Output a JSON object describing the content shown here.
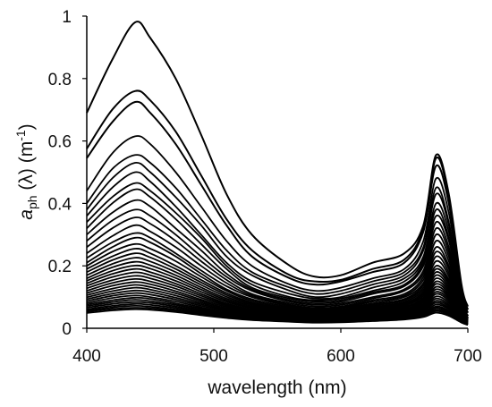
{
  "chart_data": {
    "type": "line",
    "xlabel": "wavelength (nm)",
    "ylabel": {
      "symbol": "a",
      "subscript": "ph",
      "rest": " (λ) (m",
      "superscript": "-1",
      "close": ")"
    },
    "xlim": [
      400,
      700
    ],
    "ylim": [
      0,
      1
    ],
    "xticks": [
      "400",
      "500",
      "600",
      "700"
    ],
    "yticks": [
      "0",
      "0.2",
      "0.4",
      "0.6",
      "0.8",
      "1"
    ],
    "grid": false,
    "legend": "none",
    "line_color": "#000000",
    "series": [
      {
        "values": {
          "400": 0.69,
          "420": 0.86,
          "438": 0.98,
          "450": 0.93,
          "470": 0.8,
          "490": 0.62,
          "510": 0.43,
          "530": 0.3,
          "560": 0.2,
          "580": 0.165,
          "600": 0.17,
          "625": 0.21,
          "650": 0.24,
          "665": 0.33,
          "675": 0.555,
          "685": 0.43,
          "695": 0.14,
          "700": 0.07
        }
      },
      {
        "values": {
          "400": 0.575,
          "420": 0.7,
          "438": 0.76,
          "450": 0.73,
          "470": 0.63,
          "490": 0.49,
          "510": 0.35,
          "530": 0.25,
          "560": 0.17,
          "580": 0.15,
          "600": 0.155,
          "625": 0.19,
          "650": 0.22,
          "665": 0.32,
          "675": 0.545,
          "685": 0.42,
          "695": 0.13,
          "700": 0.06
        }
      },
      {
        "values": {
          "400": 0.545,
          "420": 0.66,
          "438": 0.725,
          "450": 0.69,
          "470": 0.59,
          "490": 0.46,
          "510": 0.33,
          "530": 0.23,
          "560": 0.16,
          "580": 0.14,
          "600": 0.15,
          "625": 0.18,
          "650": 0.21,
          "665": 0.31,
          "675": 0.52,
          "685": 0.4,
          "695": 0.13,
          "700": 0.06
        }
      },
      {
        "values": {
          "400": 0.44,
          "420": 0.56,
          "438": 0.615,
          "450": 0.59,
          "470": 0.5,
          "490": 0.39,
          "510": 0.28,
          "530": 0.2,
          "560": 0.14,
          "580": 0.12,
          "600": 0.13,
          "625": 0.16,
          "650": 0.19,
          "665": 0.28,
          "675": 0.48,
          "685": 0.37,
          "695": 0.12,
          "700": 0.05
        }
      },
      {
        "values": {
          "400": 0.4,
          "420": 0.51,
          "438": 0.555,
          "450": 0.53,
          "470": 0.45,
          "490": 0.35,
          "510": 0.25,
          "530": 0.18,
          "560": 0.13,
          "580": 0.11,
          "600": 0.12,
          "625": 0.15,
          "650": 0.18,
          "665": 0.26,
          "675": 0.45,
          "685": 0.34,
          "695": 0.11,
          "700": 0.05
        }
      },
      {
        "values": {
          "400": 0.38,
          "420": 0.48,
          "438": 0.53,
          "450": 0.5,
          "470": 0.42,
          "490": 0.33,
          "510": 0.23,
          "530": 0.17,
          "560": 0.12,
          "580": 0.1,
          "600": 0.11,
          "625": 0.14,
          "650": 0.17,
          "665": 0.25,
          "675": 0.43,
          "685": 0.33,
          "695": 0.1,
          "700": 0.05
        }
      },
      {
        "values": {
          "400": 0.36,
          "420": 0.45,
          "438": 0.5,
          "450": 0.47,
          "470": 0.39,
          "490": 0.3,
          "510": 0.21,
          "530": 0.15,
          "560": 0.11,
          "580": 0.095,
          "600": 0.1,
          "625": 0.13,
          "650": 0.16,
          "665": 0.23,
          "675": 0.4,
          "685": 0.31,
          "695": 0.1,
          "700": 0.05
        }
      },
      {
        "values": {
          "400": 0.34,
          "420": 0.42,
          "438": 0.465,
          "450": 0.44,
          "470": 0.37,
          "490": 0.29,
          "510": 0.2,
          "530": 0.14,
          "560": 0.1,
          "580": 0.09,
          "600": 0.095,
          "625": 0.12,
          "650": 0.15,
          "665": 0.22,
          "675": 0.38,
          "685": 0.29,
          "695": 0.09,
          "700": 0.04
        }
      },
      {
        "values": {
          "400": 0.32,
          "420": 0.4,
          "438": 0.445,
          "450": 0.42,
          "470": 0.35,
          "490": 0.27,
          "510": 0.19,
          "530": 0.13,
          "560": 0.095,
          "580": 0.085,
          "600": 0.09,
          "625": 0.115,
          "650": 0.14,
          "665": 0.21,
          "675": 0.36,
          "685": 0.28,
          "695": 0.09,
          "700": 0.04
        }
      },
      {
        "values": {
          "400": 0.3,
          "420": 0.37,
          "438": 0.41,
          "450": 0.39,
          "470": 0.32,
          "490": 0.25,
          "510": 0.175,
          "530": 0.125,
          "560": 0.09,
          "580": 0.08,
          "600": 0.085,
          "625": 0.11,
          "650": 0.135,
          "665": 0.2,
          "675": 0.34,
          "685": 0.26,
          "695": 0.085,
          "700": 0.04
        }
      },
      {
        "values": {
          "400": 0.28,
          "420": 0.345,
          "438": 0.38,
          "450": 0.36,
          "470": 0.3,
          "490": 0.23,
          "510": 0.165,
          "530": 0.12,
          "560": 0.085,
          "580": 0.075,
          "600": 0.08,
          "625": 0.1,
          "650": 0.125,
          "665": 0.185,
          "675": 0.32,
          "685": 0.245,
          "695": 0.08,
          "700": 0.04
        }
      },
      {
        "values": {
          "400": 0.26,
          "420": 0.32,
          "438": 0.355,
          "450": 0.335,
          "470": 0.28,
          "490": 0.215,
          "510": 0.155,
          "530": 0.11,
          "560": 0.08,
          "580": 0.07,
          "600": 0.075,
          "625": 0.095,
          "650": 0.12,
          "665": 0.175,
          "675": 0.3,
          "685": 0.23,
          "695": 0.075,
          "700": 0.035
        }
      },
      {
        "values": {
          "400": 0.24,
          "420": 0.295,
          "438": 0.33,
          "450": 0.31,
          "470": 0.26,
          "490": 0.2,
          "510": 0.145,
          "530": 0.105,
          "560": 0.075,
          "580": 0.065,
          "600": 0.07,
          "625": 0.09,
          "650": 0.11,
          "665": 0.165,
          "675": 0.28,
          "685": 0.215,
          "695": 0.07,
          "700": 0.035
        }
      },
      {
        "values": {
          "400": 0.225,
          "420": 0.275,
          "438": 0.305,
          "450": 0.29,
          "470": 0.24,
          "490": 0.185,
          "510": 0.135,
          "530": 0.1,
          "560": 0.072,
          "580": 0.063,
          "600": 0.067,
          "625": 0.085,
          "650": 0.105,
          "665": 0.155,
          "675": 0.26,
          "685": 0.2,
          "695": 0.065,
          "700": 0.033
        }
      },
      {
        "values": {
          "400": 0.21,
          "420": 0.26,
          "438": 0.29,
          "450": 0.275,
          "470": 0.23,
          "490": 0.175,
          "510": 0.125,
          "530": 0.093,
          "560": 0.068,
          "580": 0.06,
          "600": 0.064,
          "625": 0.08,
          "650": 0.1,
          "665": 0.145,
          "675": 0.245,
          "685": 0.19,
          "695": 0.062,
          "700": 0.032
        }
      },
      {
        "values": {
          "400": 0.2,
          "420": 0.245,
          "438": 0.27,
          "450": 0.255,
          "470": 0.215,
          "490": 0.165,
          "510": 0.12,
          "530": 0.088,
          "560": 0.064,
          "580": 0.057,
          "600": 0.06,
          "625": 0.076,
          "650": 0.094,
          "665": 0.138,
          "675": 0.23,
          "685": 0.178,
          "695": 0.058,
          "700": 0.03
        }
      },
      {
        "values": {
          "400": 0.19,
          "420": 0.23,
          "438": 0.255,
          "450": 0.24,
          "470": 0.2,
          "490": 0.155,
          "510": 0.113,
          "530": 0.083,
          "560": 0.061,
          "580": 0.054,
          "600": 0.057,
          "625": 0.072,
          "650": 0.09,
          "665": 0.13,
          "675": 0.215,
          "685": 0.167,
          "695": 0.055,
          "700": 0.03
        }
      },
      {
        "values": {
          "400": 0.18,
          "420": 0.218,
          "438": 0.24,
          "450": 0.227,
          "470": 0.19,
          "490": 0.147,
          "510": 0.107,
          "530": 0.079,
          "560": 0.058,
          "580": 0.051,
          "600": 0.054,
          "625": 0.068,
          "650": 0.085,
          "665": 0.123,
          "675": 0.2,
          "685": 0.156,
          "695": 0.052,
          "700": 0.028
        }
      },
      {
        "values": {
          "400": 0.17,
          "420": 0.206,
          "438": 0.226,
          "450": 0.214,
          "470": 0.18,
          "490": 0.139,
          "510": 0.101,
          "530": 0.075,
          "560": 0.055,
          "580": 0.049,
          "600": 0.052,
          "625": 0.065,
          "650": 0.081,
          "665": 0.116,
          "675": 0.19,
          "685": 0.148,
          "695": 0.05,
          "700": 0.027
        }
      },
      {
        "values": {
          "400": 0.16,
          "420": 0.195,
          "438": 0.213,
          "450": 0.202,
          "470": 0.17,
          "490": 0.131,
          "510": 0.095,
          "530": 0.071,
          "560": 0.052,
          "580": 0.046,
          "600": 0.049,
          "625": 0.062,
          "650": 0.077,
          "665": 0.11,
          "675": 0.18,
          "685": 0.14,
          "695": 0.047,
          "700": 0.026
        }
      },
      {
        "values": {
          "400": 0.152,
          "420": 0.184,
          "438": 0.201,
          "450": 0.191,
          "470": 0.161,
          "490": 0.124,
          "510": 0.09,
          "530": 0.067,
          "560": 0.05,
          "580": 0.044,
          "600": 0.047,
          "625": 0.059,
          "650": 0.073,
          "665": 0.104,
          "675": 0.17,
          "685": 0.132,
          "695": 0.045,
          "700": 0.025
        }
      },
      {
        "values": {
          "400": 0.144,
          "420": 0.174,
          "438": 0.19,
          "450": 0.18,
          "470": 0.152,
          "490": 0.117,
          "510": 0.085,
          "530": 0.064,
          "560": 0.048,
          "580": 0.042,
          "600": 0.045,
          "625": 0.056,
          "650": 0.069,
          "665": 0.098,
          "675": 0.16,
          "685": 0.125,
          "695": 0.043,
          "700": 0.024
        }
      },
      {
        "values": {
          "400": 0.136,
          "420": 0.164,
          "438": 0.179,
          "450": 0.17,
          "470": 0.143,
          "490": 0.11,
          "510": 0.08,
          "530": 0.06,
          "560": 0.046,
          "580": 0.04,
          "600": 0.043,
          "625": 0.053,
          "650": 0.066,
          "665": 0.093,
          "675": 0.15,
          "685": 0.118,
          "695": 0.041,
          "700": 0.023
        }
      },
      {
        "values": {
          "400": 0.128,
          "420": 0.154,
          "438": 0.168,
          "450": 0.16,
          "470": 0.135,
          "490": 0.104,
          "510": 0.076,
          "530": 0.057,
          "560": 0.044,
          "580": 0.038,
          "600": 0.041,
          "625": 0.05,
          "650": 0.062,
          "665": 0.088,
          "675": 0.142,
          "685": 0.111,
          "695": 0.039,
          "700": 0.022
        }
      },
      {
        "values": {
          "400": 0.12,
          "420": 0.145,
          "438": 0.158,
          "450": 0.15,
          "470": 0.127,
          "490": 0.098,
          "510": 0.072,
          "530": 0.054,
          "560": 0.042,
          "580": 0.036,
          "600": 0.039,
          "625": 0.048,
          "650": 0.059,
          "665": 0.083,
          "675": 0.133,
          "685": 0.105,
          "695": 0.037,
          "700": 0.021
        }
      },
      {
        "values": {
          "400": 0.113,
          "420": 0.136,
          "438": 0.148,
          "450": 0.141,
          "470": 0.119,
          "490": 0.092,
          "510": 0.068,
          "530": 0.051,
          "560": 0.04,
          "580": 0.035,
          "600": 0.037,
          "625": 0.046,
          "650": 0.056,
          "665": 0.078,
          "675": 0.125,
          "685": 0.099,
          "695": 0.035,
          "700": 0.02
        }
      },
      {
        "values": {
          "400": 0.106,
          "420": 0.127,
          "438": 0.139,
          "450": 0.132,
          "470": 0.112,
          "490": 0.087,
          "510": 0.064,
          "530": 0.049,
          "560": 0.038,
          "580": 0.033,
          "600": 0.035,
          "625": 0.043,
          "650": 0.053,
          "665": 0.074,
          "675": 0.117,
          "685": 0.093,
          "695": 0.033,
          "700": 0.019
        }
      },
      {
        "values": {
          "400": 0.099,
          "420": 0.119,
          "438": 0.13,
          "450": 0.124,
          "470": 0.105,
          "490": 0.082,
          "510": 0.06,
          "530": 0.046,
          "560": 0.036,
          "580": 0.031,
          "600": 0.033,
          "625": 0.041,
          "650": 0.05,
          "665": 0.07,
          "675": 0.11,
          "685": 0.087,
          "695": 0.031,
          "700": 0.018
        }
      },
      {
        "values": {
          "400": 0.093,
          "420": 0.111,
          "438": 0.121,
          "450": 0.116,
          "470": 0.098,
          "490": 0.077,
          "510": 0.057,
          "530": 0.044,
          "560": 0.034,
          "580": 0.03,
          "600": 0.031,
          "625": 0.039,
          "650": 0.047,
          "665": 0.066,
          "675": 0.102,
          "685": 0.081,
          "695": 0.029,
          "700": 0.017
        }
      },
      {
        "values": {
          "400": 0.087,
          "420": 0.104,
          "438": 0.113,
          "450": 0.108,
          "470": 0.092,
          "490": 0.072,
          "510": 0.054,
          "530": 0.041,
          "560": 0.032,
          "580": 0.028,
          "600": 0.03,
          "625": 0.037,
          "650": 0.044,
          "665": 0.062,
          "675": 0.095,
          "685": 0.075,
          "695": 0.028,
          "700": 0.016
        }
      },
      {
        "values": {
          "400": 0.081,
          "420": 0.097,
          "438": 0.105,
          "450": 0.1,
          "470": 0.086,
          "490": 0.067,
          "510": 0.05,
          "530": 0.039,
          "560": 0.03,
          "580": 0.027,
          "600": 0.028,
          "625": 0.035,
          "650": 0.042,
          "665": 0.058,
          "675": 0.088,
          "685": 0.07,
          "695": 0.026,
          "700": 0.015
        }
      },
      {
        "values": {
          "400": 0.076,
          "420": 0.09,
          "438": 0.098,
          "450": 0.094,
          "470": 0.08,
          "490": 0.063,
          "510": 0.047,
          "530": 0.037,
          "560": 0.029,
          "580": 0.025,
          "600": 0.027,
          "625": 0.033,
          "650": 0.04,
          "665": 0.055,
          "675": 0.082,
          "685": 0.065,
          "695": 0.025,
          "700": 0.015
        }
      },
      {
        "values": {
          "400": 0.071,
          "420": 0.084,
          "438": 0.091,
          "450": 0.087,
          "470": 0.075,
          "490": 0.059,
          "510": 0.045,
          "530": 0.035,
          "560": 0.027,
          "580": 0.024,
          "600": 0.025,
          "625": 0.031,
          "650": 0.038,
          "665": 0.051,
          "675": 0.076,
          "685": 0.061,
          "695": 0.024,
          "700": 0.014
        }
      },
      {
        "values": {
          "400": 0.066,
          "420": 0.078,
          "438": 0.084,
          "450": 0.081,
          "470": 0.07,
          "490": 0.055,
          "510": 0.042,
          "530": 0.033,
          "560": 0.026,
          "580": 0.023,
          "600": 0.024,
          "625": 0.029,
          "650": 0.036,
          "665": 0.048,
          "675": 0.07,
          "685": 0.056,
          "695": 0.022,
          "700": 0.013
        }
      },
      {
        "values": {
          "400": 0.061,
          "420": 0.072,
          "438": 0.078,
          "450": 0.075,
          "470": 0.065,
          "490": 0.051,
          "510": 0.039,
          "530": 0.031,
          "560": 0.024,
          "580": 0.021,
          "600": 0.022,
          "625": 0.027,
          "650": 0.034,
          "665": 0.045,
          "675": 0.065,
          "685": 0.052,
          "695": 0.021,
          "700": 0.012
        }
      },
      {
        "values": {
          "400": 0.057,
          "420": 0.067,
          "438": 0.072,
          "450": 0.069,
          "470": 0.06,
          "490": 0.048,
          "510": 0.037,
          "530": 0.029,
          "560": 0.023,
          "580": 0.02,
          "600": 0.021,
          "625": 0.026,
          "650": 0.032,
          "665": 0.042,
          "675": 0.06,
          "685": 0.048,
          "695": 0.02,
          "700": 0.012
        }
      },
      {
        "values": {
          "400": 0.053,
          "420": 0.062,
          "438": 0.066,
          "450": 0.064,
          "470": 0.056,
          "490": 0.045,
          "510": 0.035,
          "530": 0.027,
          "560": 0.022,
          "580": 0.019,
          "600": 0.02,
          "625": 0.024,
          "650": 0.03,
          "665": 0.039,
          "675": 0.055,
          "685": 0.044,
          "695": 0.019,
          "700": 0.011
        }
      },
      {
        "values": {
          "400": 0.049,
          "420": 0.057,
          "438": 0.061,
          "450": 0.059,
          "470": 0.052,
          "490": 0.042,
          "510": 0.033,
          "530": 0.026,
          "560": 0.021,
          "580": 0.018,
          "600": 0.019,
          "625": 0.023,
          "650": 0.028,
          "665": 0.036,
          "675": 0.05,
          "685": 0.04,
          "695": 0.018,
          "700": 0.011
        }
      }
    ]
  }
}
